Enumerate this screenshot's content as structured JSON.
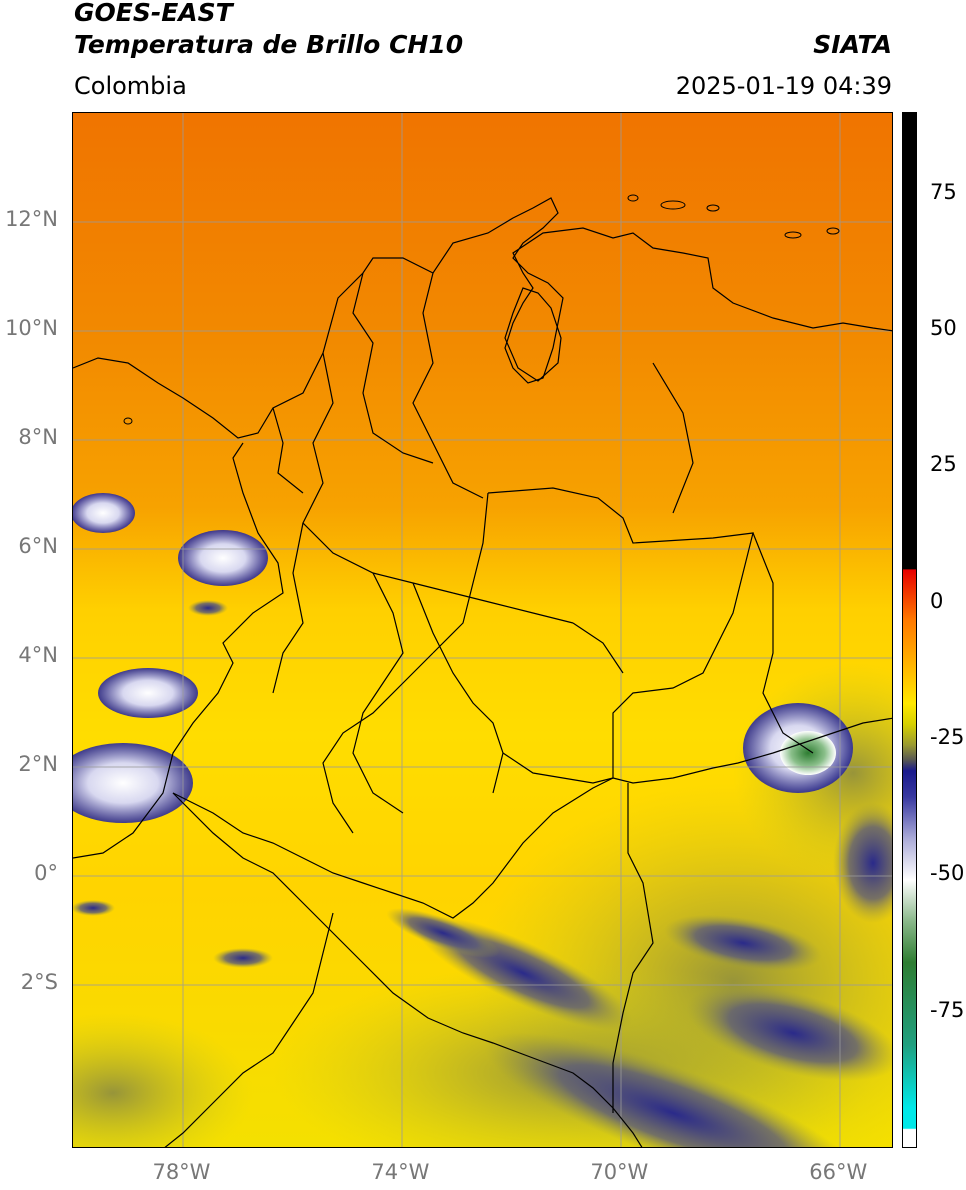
{
  "header": {
    "title_line1": "GOES-EAST",
    "title_line2": "Temperatura de Brillo CH10",
    "agency": "SIATA",
    "region": "Colombia",
    "timestamp": "2025-01-19 04:39"
  },
  "map": {
    "lon_range": [
      -80,
      -65
    ],
    "lat_range": [
      -5,
      14
    ],
    "y_ticks": [
      {
        "label": "12°N",
        "lat": 12
      },
      {
        "label": "10°N",
        "lat": 10
      },
      {
        "label": "8°N",
        "lat": 8
      },
      {
        "label": "6°N",
        "lat": 6
      },
      {
        "label": "4°N",
        "lat": 4
      },
      {
        "label": "2°N",
        "lat": 2
      },
      {
        "label": "0°",
        "lat": 0
      },
      {
        "label": "2°S",
        "lat": -2
      }
    ],
    "x_ticks": [
      {
        "label": "78°W",
        "lon": -78
      },
      {
        "label": "74°W",
        "lon": -74
      },
      {
        "label": "70°W",
        "lon": -70
      },
      {
        "label": "66°W",
        "lon": -66
      }
    ],
    "colors": {
      "warm_orange": "#f08000",
      "orange": "#f7a000",
      "yellow": "#ffe400",
      "olive": "#b8b820",
      "dark_olive": "#7a7a40",
      "navy": "#1a1a8c",
      "white": "#ffffff",
      "green": "#2e7d32",
      "grid": "#999999",
      "border": "#000000"
    }
  },
  "colorbar": {
    "ticks": [
      {
        "label": "75",
        "value": 75
      },
      {
        "label": "50",
        "value": 50
      },
      {
        "label": "25",
        "value": 25
      },
      {
        "label": "0",
        "value": 0
      },
      {
        "label": "-25",
        "value": -25
      },
      {
        "label": "-50",
        "value": -50
      },
      {
        "label": "-75",
        "value": -75
      }
    ],
    "range": [
      -100,
      90
    ]
  }
}
